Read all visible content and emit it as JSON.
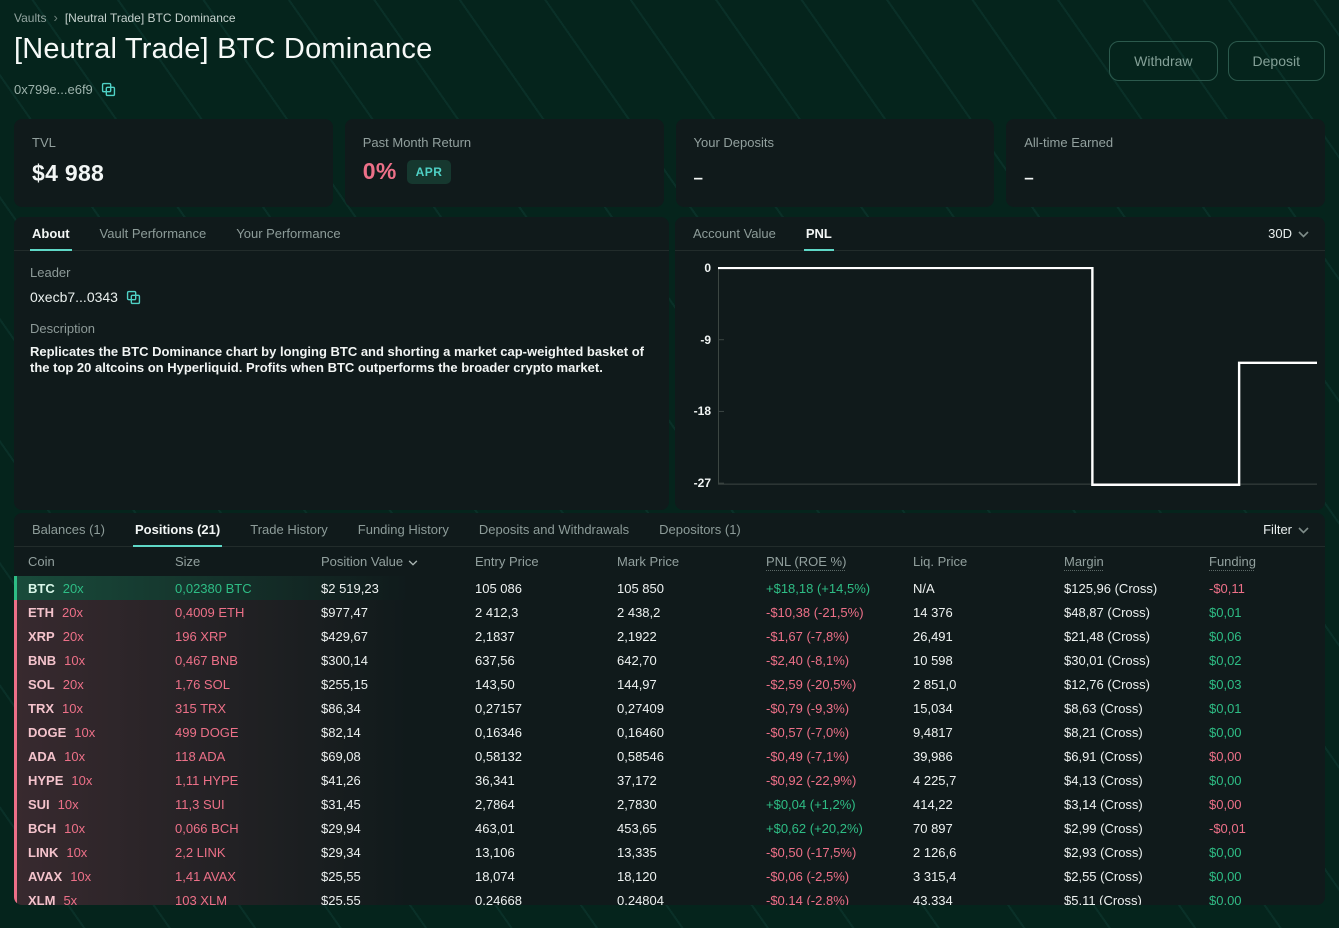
{
  "breadcrumb": {
    "root": "Vaults",
    "current": "[Neutral Trade] BTC Dominance"
  },
  "header": {
    "title": "[Neutral Trade] BTC Dominance",
    "address": "0x799e...e6f9",
    "withdraw_label": "Withdraw",
    "deposit_label": "Deposit"
  },
  "stats": {
    "tvl_label": "TVL",
    "tvl_value": "$4 988",
    "return_label": "Past Month Return",
    "return_value": "0%",
    "apr_badge": "APR",
    "deposits_label": "Your Deposits",
    "deposits_value": "–",
    "earned_label": "All-time Earned",
    "earned_value": "–"
  },
  "about": {
    "tabs": [
      "About",
      "Vault Performance",
      "Your Performance"
    ],
    "leader_label": "Leader",
    "leader_address": "0xecb7...0343",
    "description_label": "Description",
    "description": "Replicates the BTC Dominance chart by longing BTC and shorting a market cap-weighted basket of the top 20 altcoins on Hyperliquid. Profits when BTC outperforms the broader crypto market."
  },
  "chart_panel": {
    "tabs": [
      "Account Value",
      "PNL"
    ],
    "active_tab": "PNL",
    "range": "30D"
  },
  "chart_data": {
    "type": "line",
    "title": "PNL",
    "series_name": "PNL (30D)",
    "line_color": "#ffffff",
    "axis_color": "#3c4643",
    "yticks": [
      0,
      -9,
      -18,
      -27
    ],
    "ylim": [
      -27.7,
      0
    ],
    "xlim": [
      0,
      1
    ],
    "grid": false,
    "legend": "none",
    "points": [
      {
        "x": 0.0,
        "y": 0
      },
      {
        "x": 0.625,
        "y": 0
      },
      {
        "x": 0.625,
        "y": -27.2
      },
      {
        "x": 0.87,
        "y": -27.2
      },
      {
        "x": 0.87,
        "y": -11.9
      },
      {
        "x": 1.0,
        "y": -11.9
      }
    ]
  },
  "table": {
    "tabs": [
      "Balances (1)",
      "Positions (21)",
      "Trade History",
      "Funding History",
      "Deposits and Withdrawals",
      "Depositors (1)"
    ],
    "active_tab": "Positions (21)",
    "filter_label": "Filter",
    "columns": [
      "Coin",
      "Size",
      "Position Value",
      "Entry Price",
      "Mark Price",
      "PNL (ROE %)",
      "Liq. Price",
      "Margin",
      "Funding"
    ],
    "rows": [
      {
        "coin": "BTC",
        "lev": "20x",
        "side": "long",
        "size": "0,02380 BTC",
        "value": "$2 519,23",
        "entry": "105 086",
        "mark": "105 850",
        "pnl": "+$18,18 (+14,5%)",
        "pnl_pos": true,
        "liq": "N/A",
        "margin": "$125,96 (Cross)",
        "funding": "-$0,11",
        "funding_pos": false
      },
      {
        "coin": "ETH",
        "lev": "20x",
        "side": "short",
        "size": "0,4009 ETH",
        "value": "$977,47",
        "entry": "2 412,3",
        "mark": "2 438,2",
        "pnl": "-$10,38 (-21,5%)",
        "pnl_pos": false,
        "liq": "14 376",
        "margin": "$48,87 (Cross)",
        "funding": "$0,01",
        "funding_pos": true
      },
      {
        "coin": "XRP",
        "lev": "20x",
        "side": "short",
        "size": "196 XRP",
        "value": "$429,67",
        "entry": "2,1837",
        "mark": "2,1922",
        "pnl": "-$1,67 (-7,8%)",
        "pnl_pos": false,
        "liq": "26,491",
        "margin": "$21,48 (Cross)",
        "funding": "$0,06",
        "funding_pos": true
      },
      {
        "coin": "BNB",
        "lev": "10x",
        "side": "short",
        "size": "0,467 BNB",
        "value": "$300,14",
        "entry": "637,56",
        "mark": "642,70",
        "pnl": "-$2,40 (-8,1%)",
        "pnl_pos": false,
        "liq": "10 598",
        "margin": "$30,01 (Cross)",
        "funding": "$0,02",
        "funding_pos": true
      },
      {
        "coin": "SOL",
        "lev": "20x",
        "side": "short",
        "size": "1,76 SOL",
        "value": "$255,15",
        "entry": "143,50",
        "mark": "144,97",
        "pnl": "-$2,59 (-20,5%)",
        "pnl_pos": false,
        "liq": "2 851,0",
        "margin": "$12,76 (Cross)",
        "funding": "$0,03",
        "funding_pos": true
      },
      {
        "coin": "TRX",
        "lev": "10x",
        "side": "short",
        "size": "315 TRX",
        "value": "$86,34",
        "entry": "0,27157",
        "mark": "0,27409",
        "pnl": "-$0,79 (-9,3%)",
        "pnl_pos": false,
        "liq": "15,034",
        "margin": "$8,63 (Cross)",
        "funding": "$0,01",
        "funding_pos": true
      },
      {
        "coin": "DOGE",
        "lev": "10x",
        "side": "short",
        "size": "499 DOGE",
        "value": "$82,14",
        "entry": "0,16346",
        "mark": "0,16460",
        "pnl": "-$0,57 (-7,0%)",
        "pnl_pos": false,
        "liq": "9,4817",
        "margin": "$8,21 (Cross)",
        "funding": "$0,00",
        "funding_pos": true
      },
      {
        "coin": "ADA",
        "lev": "10x",
        "side": "short",
        "size": "118 ADA",
        "value": "$69,08",
        "entry": "0,58132",
        "mark": "0,58546",
        "pnl": "-$0,49 (-7,1%)",
        "pnl_pos": false,
        "liq": "39,986",
        "margin": "$6,91 (Cross)",
        "funding": "$0,00",
        "funding_pos": false
      },
      {
        "coin": "HYPE",
        "lev": "10x",
        "side": "short",
        "size": "1,11 HYPE",
        "value": "$41,26",
        "entry": "36,341",
        "mark": "37,172",
        "pnl": "-$0,92 (-22,9%)",
        "pnl_pos": false,
        "liq": "4 225,7",
        "margin": "$4,13 (Cross)",
        "funding": "$0,00",
        "funding_pos": true
      },
      {
        "coin": "SUI",
        "lev": "10x",
        "side": "short",
        "size": "11,3 SUI",
        "value": "$31,45",
        "entry": "2,7864",
        "mark": "2,7830",
        "pnl": "+$0,04 (+1,2%)",
        "pnl_pos": true,
        "liq": "414,22",
        "margin": "$3,14 (Cross)",
        "funding": "$0,00",
        "funding_pos": false
      },
      {
        "coin": "BCH",
        "lev": "10x",
        "side": "short",
        "size": "0,066 BCH",
        "value": "$29,94",
        "entry": "463,01",
        "mark": "453,65",
        "pnl": "+$0,62 (+20,2%)",
        "pnl_pos": true,
        "liq": "70 897",
        "margin": "$2,99 (Cross)",
        "funding": "-$0,01",
        "funding_pos": false
      },
      {
        "coin": "LINK",
        "lev": "10x",
        "side": "short",
        "size": "2,2 LINK",
        "value": "$29,34",
        "entry": "13,106",
        "mark": "13,335",
        "pnl": "-$0,50 (-17,5%)",
        "pnl_pos": false,
        "liq": "2 126,6",
        "margin": "$2,93 (Cross)",
        "funding": "$0,00",
        "funding_pos": true
      },
      {
        "coin": "AVAX",
        "lev": "10x",
        "side": "short",
        "size": "1,41 AVAX",
        "value": "$25,55",
        "entry": "18,074",
        "mark": "18,120",
        "pnl": "-$0,06 (-2,5%)",
        "pnl_pos": false,
        "liq": "3 315,4",
        "margin": "$2,55 (Cross)",
        "funding": "$0,00",
        "funding_pos": true
      },
      {
        "coin": "XLM",
        "lev": "5x",
        "side": "short",
        "size": "103 XLM",
        "value": "$25,55",
        "entry": "0,24668",
        "mark": "0,24804",
        "pnl": "-$0,14 (-2,8%)",
        "pnl_pos": false,
        "liq": "43,334",
        "margin": "$5,11 (Cross)",
        "funding": "$0,00",
        "funding_pos": true
      }
    ]
  },
  "icons": {
    "copy": "copy-icon",
    "chevron_down": "chevron-down-icon",
    "breadcrumb_sep": "chevron-right-icon"
  },
  "colors": {
    "accent_teal": "#4fd1c5",
    "green": "#2ebd85",
    "red": "#ed7088",
    "panel_bg": "#101a1b",
    "page_bg": "#05241c",
    "line": "#ffffff"
  }
}
